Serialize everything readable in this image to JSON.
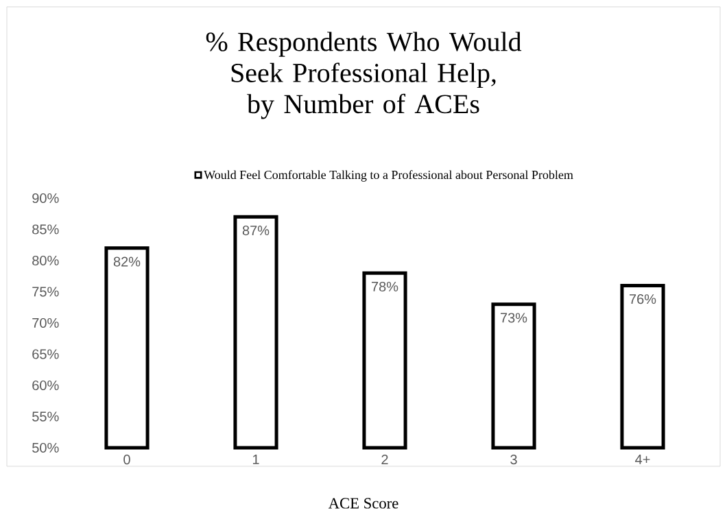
{
  "chart_data": {
    "type": "bar",
    "title": "% Respondents Who Would Seek Professional Help, by Number of ACEs",
    "xlabel": "ACE Score",
    "categories": [
      "0",
      "1",
      "2",
      "3",
      "4+"
    ],
    "series": [
      {
        "name": "Would Feel Comfortable Talking to a Professional about Personal Problem",
        "color": "#ffffff",
        "values": [
          82,
          87,
          78,
          73,
          76
        ],
        "value_labels": [
          "82%",
          "87%",
          "78%",
          "73%",
          "76%"
        ]
      }
    ],
    "ylim": [
      50,
      90
    ],
    "yticks": [
      {
        "value": 50,
        "label": "50%"
      },
      {
        "value": 55,
        "label": "55%"
      },
      {
        "value": 60,
        "label": "60%"
      },
      {
        "value": 65,
        "label": "65%"
      },
      {
        "value": 70,
        "label": "70%"
      },
      {
        "value": 75,
        "label": "75%"
      },
      {
        "value": 80,
        "label": "80%"
      },
      {
        "value": 85,
        "label": "85%"
      },
      {
        "value": 90,
        "label": "90%"
      }
    ],
    "legend": "top"
  }
}
